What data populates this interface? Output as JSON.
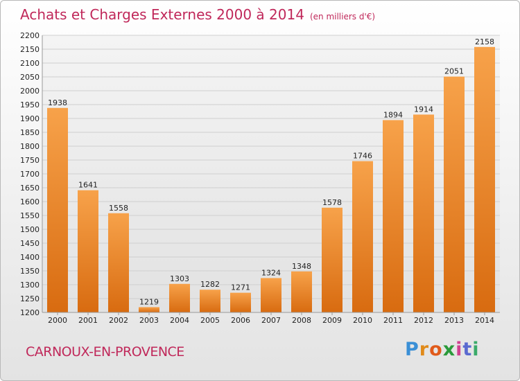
{
  "header": {
    "title": "Achats et Charges Externes 2000 à 2014",
    "unit": "(en milliers d'€)"
  },
  "footer": {
    "city": "CARNOUX-EN-PROVENCE",
    "logo_letters": [
      "P",
      "r",
      "o",
      "x",
      "i",
      "t",
      "i"
    ],
    "logo_colors": [
      "#3a8fd6",
      "#e08a1a",
      "#e05a1a",
      "#2a9a3a",
      "#d04090",
      "#5a6ad0",
      "#3aaa6a"
    ]
  },
  "colors": {
    "title": "#c0285a",
    "bar_light": "#f7a24a",
    "bar_dark": "#d86b10",
    "grid": "#cfcfcf"
  },
  "chart_data": {
    "type": "bar",
    "title": "Achats et Charges Externes 2000 à 2014",
    "categories": [
      "2000",
      "2001",
      "2002",
      "2003",
      "2004",
      "2005",
      "2006",
      "2007",
      "2008",
      "2009",
      "2010",
      "2011",
      "2012",
      "2013",
      "2014"
    ],
    "values": [
      1938,
      1641,
      1558,
      1219,
      1303,
      1282,
      1271,
      1324,
      1348,
      1578,
      1746,
      1894,
      1914,
      2051,
      2158
    ],
    "ylim": [
      1200,
      2200
    ],
    "yticks": [
      1200,
      1250,
      1300,
      1350,
      1400,
      1450,
      1500,
      1550,
      1600,
      1650,
      1700,
      1750,
      1800,
      1850,
      1900,
      1950,
      2000,
      2050,
      2100,
      2150,
      2200
    ],
    "grid": true,
    "xlabel": "",
    "ylabel": ""
  }
}
